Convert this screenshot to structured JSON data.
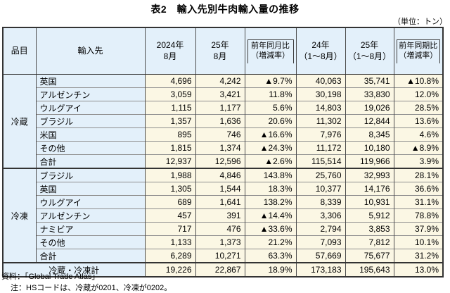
{
  "title": "表2　輸入先別牛肉輸入量の推移",
  "unit_note": "（単位：トン）",
  "colors": {
    "header_bg": "#e3f0fa",
    "data_bg": "#fbf7e4",
    "border_outer": "#333333",
    "border_inner_vertical": "#4d4d4d",
    "border_row": "#8f8f8f"
  },
  "table": {
    "columns": [
      {
        "label": "品目"
      },
      {
        "label": "輸入先"
      },
      {
        "label": "2024年\n8月"
      },
      {
        "label": "25年\n8月"
      },
      {
        "label": "前年同月比\n（増減率）",
        "boxed": true
      },
      {
        "label": "24年\n（1～8月）"
      },
      {
        "label": "25年\n（1～8月）"
      },
      {
        "label": "前年同期比\n（増減率）",
        "boxed": true
      }
    ],
    "sections": [
      {
        "item": "冷蔵",
        "rows": [
          {
            "label": "英国",
            "values": [
              "4,696",
              "4,242",
              "▲9.7%",
              "40,063",
              "35,741",
              "▲10.8%"
            ]
          },
          {
            "label": "アルゼンチン",
            "values": [
              "3,059",
              "3,421",
              "11.8%",
              "30,198",
              "33,830",
              "12.0%"
            ]
          },
          {
            "label": "ウルグアイ",
            "values": [
              "1,115",
              "1,177",
              "5.6%",
              "14,803",
              "19,026",
              "28.5%"
            ]
          },
          {
            "label": "ブラジル",
            "values": [
              "1,357",
              "1,636",
              "20.6%",
              "11,302",
              "12,844",
              "13.6%"
            ]
          },
          {
            "label": "米国",
            "values": [
              "895",
              "746",
              "▲16.6%",
              "7,976",
              "8,345",
              "4.6%"
            ]
          },
          {
            "label": "その他",
            "values": [
              "1,815",
              "1,374",
              "▲24.3%",
              "11,172",
              "10,180",
              "▲8.9%"
            ]
          },
          {
            "label": "合計",
            "values": [
              "12,937",
              "12,596",
              "▲2.6%",
              "115,514",
              "119,966",
              "3.9%"
            ]
          }
        ]
      },
      {
        "item": "冷凍",
        "rows": [
          {
            "label": "ブラジル",
            "values": [
              "1,988",
              "4,846",
              "143.8%",
              "25,760",
              "32,993",
              "28.1%"
            ]
          },
          {
            "label": "英国",
            "values": [
              "1,305",
              "1,544",
              "18.3%",
              "10,377",
              "14,176",
              "36.6%"
            ]
          },
          {
            "label": "ウルグアイ",
            "values": [
              "689",
              "1,641",
              "138.2%",
              "8,339",
              "10,931",
              "31.1%"
            ]
          },
          {
            "label": "アルゼンチン",
            "values": [
              "457",
              "391",
              "▲14.4%",
              "3,306",
              "5,912",
              "78.8%"
            ]
          },
          {
            "label": "ナミビア",
            "values": [
              "717",
              "476",
              "▲33.6%",
              "2,794",
              "3,853",
              "37.9%"
            ]
          },
          {
            "label": "その他",
            "values": [
              "1,133",
              "1,373",
              "21.2%",
              "7,093",
              "7,812",
              "10.1%"
            ]
          },
          {
            "label": "合計",
            "values": [
              "6,289",
              "10,271",
              "63.3%",
              "57,669",
              "75,677",
              "31.2%"
            ]
          }
        ]
      }
    ],
    "grand_total": {
      "label": "冷蔵・冷凍計",
      "values": [
        "19,226",
        "22,867",
        "18.9%",
        "173,183",
        "195,643",
        "13.0%"
      ]
    }
  },
  "footer": {
    "source": "資料：「Global Trade Atlas」",
    "note": "注：HSコードは、冷蔵が0201、冷凍が0202。"
  }
}
